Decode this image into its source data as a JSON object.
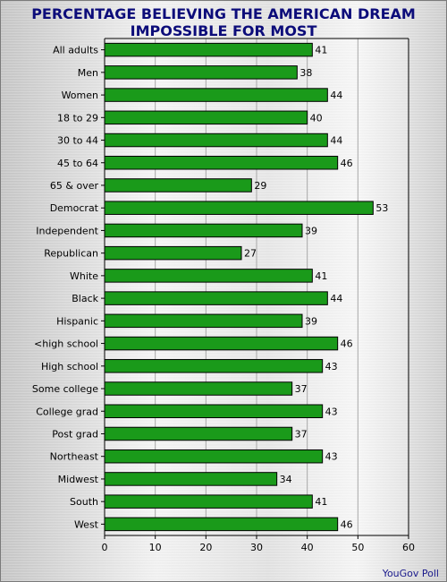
{
  "chart_data": {
    "type": "bar",
    "orientation": "horizontal",
    "title_lines": [
      "PERCENTAGE BELIEVING THE AMERICAN DREAM",
      "IMPOSSIBLE FOR MOST"
    ],
    "categories": [
      "All adults",
      "Men",
      "Women",
      "18 to 29",
      "30 to 44",
      "45 to 64",
      "65 & over",
      "Democrat",
      "Independent",
      "Republican",
      "White",
      "Black",
      "Hispanic",
      "<high school",
      "High school",
      "Some college",
      "College grad",
      "Post grad",
      "Northeast",
      "Midwest",
      "South",
      "West"
    ],
    "values": [
      41,
      38,
      44,
      40,
      44,
      46,
      29,
      53,
      39,
      27,
      41,
      44,
      39,
      46,
      43,
      37,
      43,
      37,
      43,
      34,
      41,
      46
    ],
    "xlim": [
      0,
      60
    ],
    "xticks": [
      0,
      10,
      20,
      30,
      40,
      50,
      60
    ],
    "grid": true,
    "bar_color": "#1a9a1a",
    "title_color": "#0c0c7a"
  },
  "source": "YouGov Poll"
}
